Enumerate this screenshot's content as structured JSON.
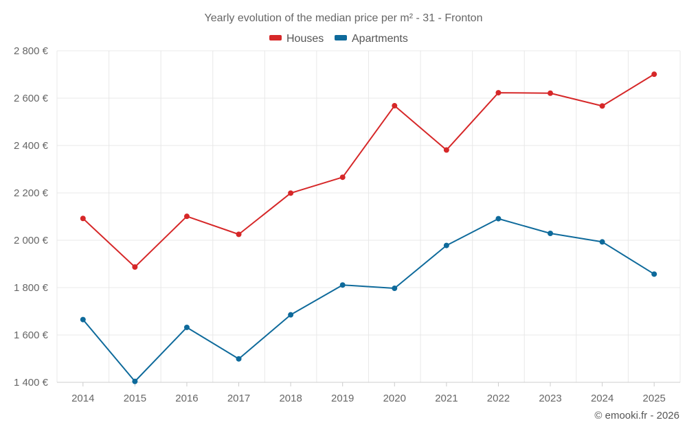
{
  "chart_data": {
    "type": "line",
    "title": "Yearly evolution of the median price per m² - 31 - Fronton",
    "categories": [
      "2014",
      "2015",
      "2016",
      "2017",
      "2018",
      "2019",
      "2020",
      "2021",
      "2022",
      "2023",
      "2024",
      "2025"
    ],
    "series": [
      {
        "name": "Houses",
        "color": "#d62728",
        "values": [
          2092,
          1887,
          2101,
          2025,
          2199,
          2266,
          2568,
          2381,
          2623,
          2621,
          2567,
          2701
        ]
      },
      {
        "name": "Apartments",
        "color": "#0e6a9b",
        "values": [
          1665,
          1404,
          1632,
          1499,
          1685,
          1811,
          1797,
          1978,
          2091,
          2029,
          1993,
          1857
        ]
      }
    ],
    "ylim": [
      1400,
      2800
    ],
    "yticks": [
      1400,
      1600,
      1800,
      2000,
      2200,
      2400,
      2600,
      2800
    ],
    "ytick_labels": [
      "1 400 €",
      "1 600 €",
      "1 800 €",
      "2 000 €",
      "2 200 €",
      "2 400 €",
      "2 600 €",
      "2 800 €"
    ],
    "legend_position": "top-center",
    "grid": true
  },
  "credit": "© emooki.fr - 2026"
}
